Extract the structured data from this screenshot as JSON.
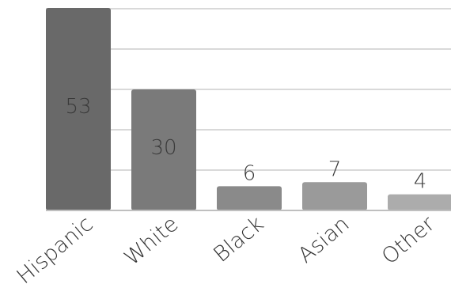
{
  "chart_data": {
    "type": "bar",
    "categories": [
      "Hispanic",
      "White",
      "Black",
      "Asian",
      "Other"
    ],
    "values": [
      53,
      30,
      6,
      7,
      4
    ],
    "colors": [
      "#696969",
      "#7a7a7a",
      "#8a8a8a",
      "#9a9a9a",
      "#acacac"
    ],
    "ylim": [
      0,
      50
    ],
    "gridlines": [
      10,
      20,
      30,
      40,
      50
    ],
    "grid": true,
    "legend": "none",
    "data_labels": true
  }
}
